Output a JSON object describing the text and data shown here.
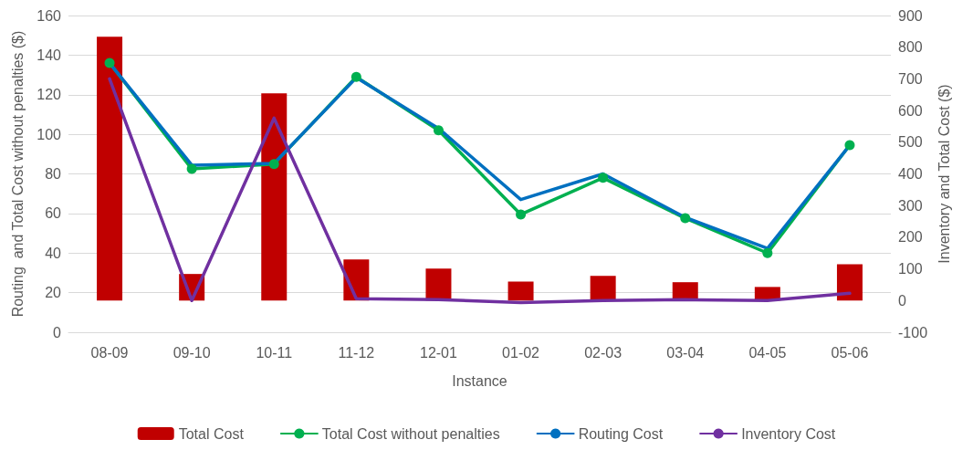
{
  "chart_data": {
    "type": "line",
    "xlabel": "Instance",
    "ylabel": "Routing  and Total Cost without penalties ($)",
    "y2label": "Inventory and Total Cost ($)",
    "categories": [
      "08-09",
      "09-10",
      "10-11",
      "11-12",
      "12-01",
      "01-02",
      "02-03",
      "03-04",
      "04-05",
      "05-06"
    ],
    "series": [
      {
        "name": "Total Cost",
        "type": "bar",
        "axis": "y2",
        "color": "#c00000",
        "values": [
          833,
          84,
          654,
          130,
          101,
          60,
          78,
          58,
          43,
          115
        ]
      },
      {
        "name": "Total Cost without penalties",
        "marker": "circle",
        "color": "#00b050",
        "values": [
          136,
          82.5,
          85,
          129,
          102,
          59.5,
          78,
          57.6,
          40,
          94.5
        ]
      },
      {
        "name": "Routing Cost",
        "marker": "none",
        "color": "#0070c0",
        "values": [
          136,
          84.4,
          85.3,
          128.6,
          103,
          67,
          80,
          58,
          42.4,
          94.5
        ]
      },
      {
        "name": "Inventory Cost",
        "axis": "y2",
        "marker": "none",
        "color": "#7030a0",
        "values": [
          700,
          0,
          576,
          6,
          3,
          -6,
          0,
          3,
          0,
          23
        ]
      }
    ],
    "ylim": [
      0,
      160
    ],
    "yticks": [
      0,
      20,
      40,
      60,
      80,
      100,
      120,
      140,
      160
    ],
    "y2lim": [
      -100,
      900
    ],
    "y2ticks": [
      -100,
      0,
      100,
      200,
      300,
      400,
      500,
      600,
      700,
      800,
      900
    ],
    "grid": "y",
    "legend": "bottom"
  }
}
